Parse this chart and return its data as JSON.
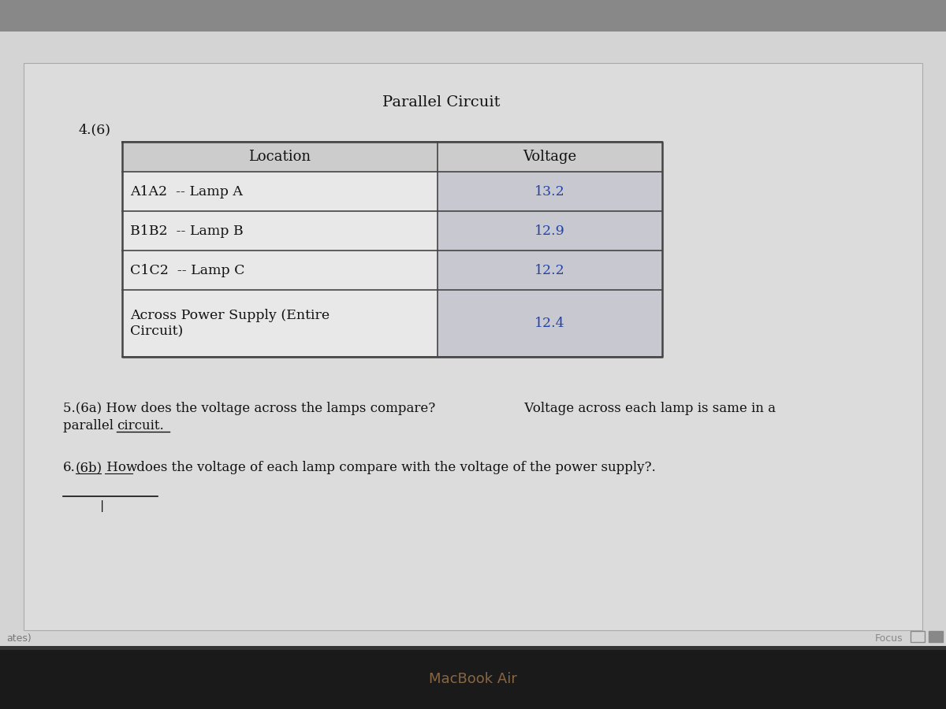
{
  "title": "Parallel Circuit",
  "question_number": "4.(6)",
  "table_headers": [
    "Location",
    "Voltage"
  ],
  "table_rows": [
    [
      "A1A2  -- Lamp A",
      "13.2"
    ],
    [
      "B1B2  -- Lamp B",
      "12.9"
    ],
    [
      "C1C2  -- Lamp C",
      "12.2"
    ],
    [
      "Across Power Supply (Entire\nCircuit)",
      "12.4"
    ]
  ],
  "question5_part1": "5.(6a) How does the voltage across the lamps compare?",
  "question5_part2": " Voltage across each lamp is same in a",
  "question5_line2_left": "parallel ",
  "question5_line2_underlined": "circuit.",
  "answer5_line2": "",
  "question6_prefix": "6.",
  "question6_6b": "(6b)",
  "question6_how": " How",
  "question6_rest": " does the voltage of each lamp compare with the voltage of the power supply?.",
  "bg_outer": "#b8b8b8",
  "bg_screen": "#d4d4d4",
  "bg_page": "#dcdcdc",
  "table_header_bg": "#cccccc",
  "table_left_bg": "#e8e8e8",
  "table_right_bg": "#c8c8d0",
  "table_border_color": "#444444",
  "title_color": "#111111",
  "header_color": "#111111",
  "data_value_color": "#2244aa",
  "text_color": "#111111",
  "bottom_bar_color": "#111111",
  "bottom_bar_inner": "#222222",
  "macbook_text": "MacBook Air",
  "bottom_bar_text_color": "#886644",
  "focus_text": "Focus",
  "notes_text": "ates)",
  "title_fontsize": 14,
  "header_fontsize": 13,
  "body_fontsize": 12.5,
  "question_fontsize": 12
}
